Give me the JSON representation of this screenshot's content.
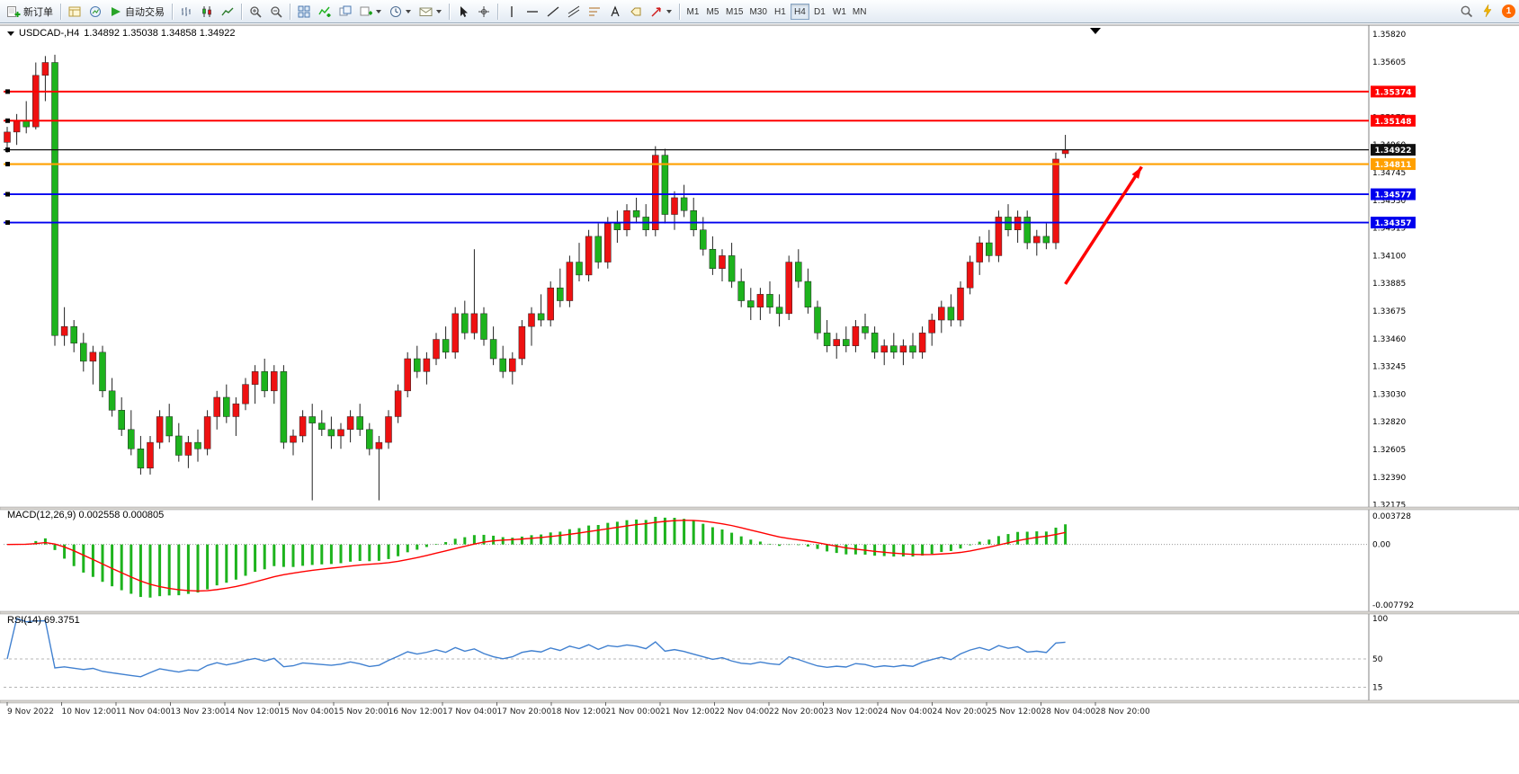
{
  "toolbar": {
    "new_order_label": "新订单",
    "auto_trading_label": "自动交易",
    "timeframes": [
      "M1",
      "M5",
      "M15",
      "M30",
      "H1",
      "H4",
      "D1",
      "W1",
      "MN"
    ],
    "active_timeframe": "H4",
    "notification_count": "1"
  },
  "chart": {
    "title": "USDCAD-,H4",
    "ohlc": "1.34892 1.35038 1.34858 1.34922"
  },
  "indicators": {
    "macd_label": "MACD(12,26,9) 0.002558 0.000805",
    "rsi_label": "RSI(14) 69.3751"
  },
  "chart_data": {
    "type": "candlestick",
    "symbol": "USDCAD-",
    "period": "H4",
    "quote": {
      "open": "1.34892",
      "high": "1.35038",
      "low": "1.34858",
      "close": "1.34922"
    },
    "colors": {
      "bull": "#ee1111",
      "bear": "#1db31d",
      "wick": "#222222",
      "macd_hist": "#1db31d",
      "macd_signal": "#ff0000",
      "rsi_line": "#4080d0"
    },
    "price_axis": {
      "ticks": [
        "1.35820",
        "1.35605",
        "1.35390",
        "1.35175",
        "1.34960",
        "1.34745",
        "1.34530",
        "1.34315",
        "1.34100",
        "1.33885",
        "1.33675",
        "1.33460",
        "1.33245",
        "1.33030",
        "1.32820",
        "1.32605",
        "1.32390",
        "1.32175"
      ]
    },
    "time_axis": [
      "9 Nov 2022",
      "10 Nov 12:00",
      "11 Nov 04:00",
      "13 Nov 23:00",
      "14 Nov 12:00",
      "15 Nov 04:00",
      "15 Nov 20:00",
      "16 Nov 12:00",
      "17 Nov 04:00",
      "17 Nov 20:00",
      "18 Nov 12:00",
      "21 Nov 00:00",
      "21 Nov 12:00",
      "22 Nov 04:00",
      "22 Nov 20:00",
      "23 Nov 12:00",
      "24 Nov 04:00",
      "24 Nov 20:00",
      "25 Nov 12:00",
      "28 Nov 04:00",
      "28 Nov 20:00"
    ],
    "hlines": [
      {
        "price": 1.35374,
        "label": "1.35374",
        "color": "#ff0000",
        "width": 2
      },
      {
        "price": 1.35148,
        "label": "1.35148",
        "color": "#ff0000",
        "width": 2
      },
      {
        "price": 1.34922,
        "label": "1.34922",
        "color": "#111111",
        "width": 1.2
      },
      {
        "price": 1.34811,
        "label": "1.34811",
        "color": "#ffa000",
        "width": 2.2
      },
      {
        "price": 1.34577,
        "label": "1.34577",
        "color": "#0000ee",
        "width": 1.8
      },
      {
        "price": 1.34357,
        "label": "1.34357",
        "color": "#0000ee",
        "width": 1.8
      }
    ],
    "arrow": {
      "from_bar": 111,
      "from_price": 1.3388,
      "to_bar": 119,
      "to_price": 1.3479,
      "color": "#ff0000"
    },
    "macd": {
      "params": "12,26,9",
      "value": 0.002558,
      "signal": 0.000805,
      "axis_labels": [
        "0.003728",
        "0.00",
        "-0.007792"
      ],
      "axis_top": 0.003728,
      "axis_bottom": -0.007792
    },
    "rsi": {
      "period": 14,
      "value": 69.3751,
      "axis_labels": [
        "100",
        "50",
        "15"
      ],
      "levels": [
        50,
        15
      ]
    },
    "candles": [
      [
        1.3498,
        1.351,
        1.349,
        1.3506
      ],
      [
        1.3506,
        1.352,
        1.3496,
        1.3515
      ],
      [
        1.3515,
        1.353,
        1.3505,
        1.351
      ],
      [
        1.351,
        1.356,
        1.3508,
        1.355
      ],
      [
        1.355,
        1.3565,
        1.353,
        1.356
      ],
      [
        1.356,
        1.3566,
        1.334,
        1.3348
      ],
      [
        1.3348,
        1.337,
        1.334,
        1.3355
      ],
      [
        1.3355,
        1.336,
        1.3335,
        1.3342
      ],
      [
        1.3342,
        1.335,
        1.332,
        1.3328
      ],
      [
        1.3328,
        1.334,
        1.331,
        1.3335
      ],
      [
        1.3335,
        1.334,
        1.33,
        1.3305
      ],
      [
        1.3305,
        1.3315,
        1.3285,
        1.329
      ],
      [
        1.329,
        1.33,
        1.327,
        1.3275
      ],
      [
        1.3275,
        1.329,
        1.3255,
        1.326
      ],
      [
        1.326,
        1.327,
        1.324,
        1.3245
      ],
      [
        1.3245,
        1.327,
        1.324,
        1.3265
      ],
      [
        1.3265,
        1.329,
        1.326,
        1.3285
      ],
      [
        1.3285,
        1.3295,
        1.3265,
        1.327
      ],
      [
        1.327,
        1.328,
        1.325,
        1.3255
      ],
      [
        1.3255,
        1.327,
        1.3245,
        1.3265
      ],
      [
        1.3265,
        1.3275,
        1.325,
        1.326
      ],
      [
        1.326,
        1.329,
        1.3255,
        1.3285
      ],
      [
        1.3285,
        1.3305,
        1.3275,
        1.33
      ],
      [
        1.33,
        1.331,
        1.328,
        1.3285
      ],
      [
        1.3285,
        1.33,
        1.327,
        1.3295
      ],
      [
        1.3295,
        1.3315,
        1.329,
        1.331
      ],
      [
        1.331,
        1.3325,
        1.3295,
        1.332
      ],
      [
        1.332,
        1.333,
        1.33,
        1.3305
      ],
      [
        1.3305,
        1.3325,
        1.3295,
        1.332
      ],
      [
        1.332,
        1.3325,
        1.326,
        1.3265
      ],
      [
        1.3265,
        1.3275,
        1.3255,
        1.327
      ],
      [
        1.327,
        1.329,
        1.3265,
        1.3285
      ],
      [
        1.3285,
        1.3295,
        1.322,
        1.328
      ],
      [
        1.328,
        1.329,
        1.327,
        1.3275
      ],
      [
        1.3275,
        1.3285,
        1.326,
        1.327
      ],
      [
        1.327,
        1.328,
        1.326,
        1.3275
      ],
      [
        1.3275,
        1.329,
        1.3265,
        1.3285
      ],
      [
        1.3285,
        1.3295,
        1.327,
        1.3275
      ],
      [
        1.3275,
        1.328,
        1.3255,
        1.326
      ],
      [
        1.326,
        1.327,
        1.322,
        1.3265
      ],
      [
        1.3265,
        1.329,
        1.326,
        1.3285
      ],
      [
        1.3285,
        1.331,
        1.328,
        1.3305
      ],
      [
        1.3305,
        1.3335,
        1.33,
        1.333
      ],
      [
        1.333,
        1.334,
        1.3315,
        1.332
      ],
      [
        1.332,
        1.3335,
        1.331,
        1.333
      ],
      [
        1.333,
        1.335,
        1.3325,
        1.3345
      ],
      [
        1.3345,
        1.3355,
        1.333,
        1.3335
      ],
      [
        1.3335,
        1.337,
        1.333,
        1.3365
      ],
      [
        1.3365,
        1.3375,
        1.3345,
        1.335
      ],
      [
        1.335,
        1.3415,
        1.3345,
        1.3365
      ],
      [
        1.3365,
        1.337,
        1.334,
        1.3345
      ],
      [
        1.3345,
        1.3355,
        1.3325,
        1.333
      ],
      [
        1.333,
        1.334,
        1.3315,
        1.332
      ],
      [
        1.332,
        1.3335,
        1.331,
        1.333
      ],
      [
        1.333,
        1.336,
        1.3325,
        1.3355
      ],
      [
        1.3355,
        1.337,
        1.334,
        1.3365
      ],
      [
        1.3365,
        1.338,
        1.3355,
        1.336
      ],
      [
        1.336,
        1.339,
        1.3355,
        1.3385
      ],
      [
        1.3385,
        1.34,
        1.337,
        1.3375
      ],
      [
        1.3375,
        1.341,
        1.337,
        1.3405
      ],
      [
        1.3405,
        1.342,
        1.339,
        1.3395
      ],
      [
        1.3395,
        1.343,
        1.339,
        1.3425
      ],
      [
        1.3425,
        1.3435,
        1.34,
        1.3405
      ],
      [
        1.3405,
        1.344,
        1.34,
        1.3435
      ],
      [
        1.3435,
        1.3445,
        1.342,
        1.343
      ],
      [
        1.343,
        1.345,
        1.3425,
        1.3445
      ],
      [
        1.3445,
        1.3455,
        1.3435,
        1.344
      ],
      [
        1.344,
        1.345,
        1.3425,
        1.343
      ],
      [
        1.343,
        1.3495,
        1.3425,
        1.3488
      ],
      [
        1.3488,
        1.3493,
        1.3435,
        1.3442
      ],
      [
        1.3442,
        1.346,
        1.343,
        1.3455
      ],
      [
        1.3455,
        1.3465,
        1.344,
        1.3445
      ],
      [
        1.3445,
        1.3455,
        1.3425,
        1.343
      ],
      [
        1.343,
        1.344,
        1.341,
        1.3415
      ],
      [
        1.3415,
        1.3425,
        1.3395,
        1.34
      ],
      [
        1.34,
        1.3415,
        1.339,
        1.341
      ],
      [
        1.341,
        1.342,
        1.3385,
        1.339
      ],
      [
        1.339,
        1.34,
        1.337,
        1.3375
      ],
      [
        1.3375,
        1.3385,
        1.336,
        1.337
      ],
      [
        1.337,
        1.3385,
        1.336,
        1.338
      ],
      [
        1.338,
        1.339,
        1.3365,
        1.337
      ],
      [
        1.337,
        1.338,
        1.3355,
        1.3365
      ],
      [
        1.3365,
        1.341,
        1.336,
        1.3405
      ],
      [
        1.3405,
        1.3415,
        1.3385,
        1.339
      ],
      [
        1.339,
        1.34,
        1.3365,
        1.337
      ],
      [
        1.337,
        1.3375,
        1.3345,
        1.335
      ],
      [
        1.335,
        1.336,
        1.3335,
        1.334
      ],
      [
        1.334,
        1.335,
        1.333,
        1.3345
      ],
      [
        1.3345,
        1.3355,
        1.3335,
        1.334
      ],
      [
        1.334,
        1.336,
        1.3335,
        1.3355
      ],
      [
        1.3355,
        1.3365,
        1.3345,
        1.335
      ],
      [
        1.335,
        1.3355,
        1.333,
        1.3335
      ],
      [
        1.3335,
        1.3345,
        1.3325,
        1.334
      ],
      [
        1.334,
        1.335,
        1.333,
        1.3335
      ],
      [
        1.3335,
        1.3345,
        1.3325,
        1.334
      ],
      [
        1.334,
        1.335,
        1.333,
        1.3335
      ],
      [
        1.3335,
        1.3355,
        1.333,
        1.335
      ],
      [
        1.335,
        1.3365,
        1.334,
        1.336
      ],
      [
        1.336,
        1.3375,
        1.335,
        1.337
      ],
      [
        1.337,
        1.338,
        1.3355,
        1.336
      ],
      [
        1.336,
        1.339,
        1.3355,
        1.3385
      ],
      [
        1.3385,
        1.341,
        1.338,
        1.3405
      ],
      [
        1.3405,
        1.3425,
        1.3395,
        1.342
      ],
      [
        1.342,
        1.343,
        1.3405,
        1.341
      ],
      [
        1.341,
        1.3445,
        1.3405,
        1.344
      ],
      [
        1.344,
        1.345,
        1.3425,
        1.343
      ],
      [
        1.343,
        1.3445,
        1.342,
        1.344
      ],
      [
        1.344,
        1.3445,
        1.3415,
        1.342
      ],
      [
        1.342,
        1.343,
        1.341,
        1.3425
      ],
      [
        1.3425,
        1.3435,
        1.3415,
        1.342
      ],
      [
        1.342,
        1.349,
        1.3415,
        1.3485
      ],
      [
        1.34892,
        1.35038,
        1.34858,
        1.34922
      ]
    ]
  }
}
